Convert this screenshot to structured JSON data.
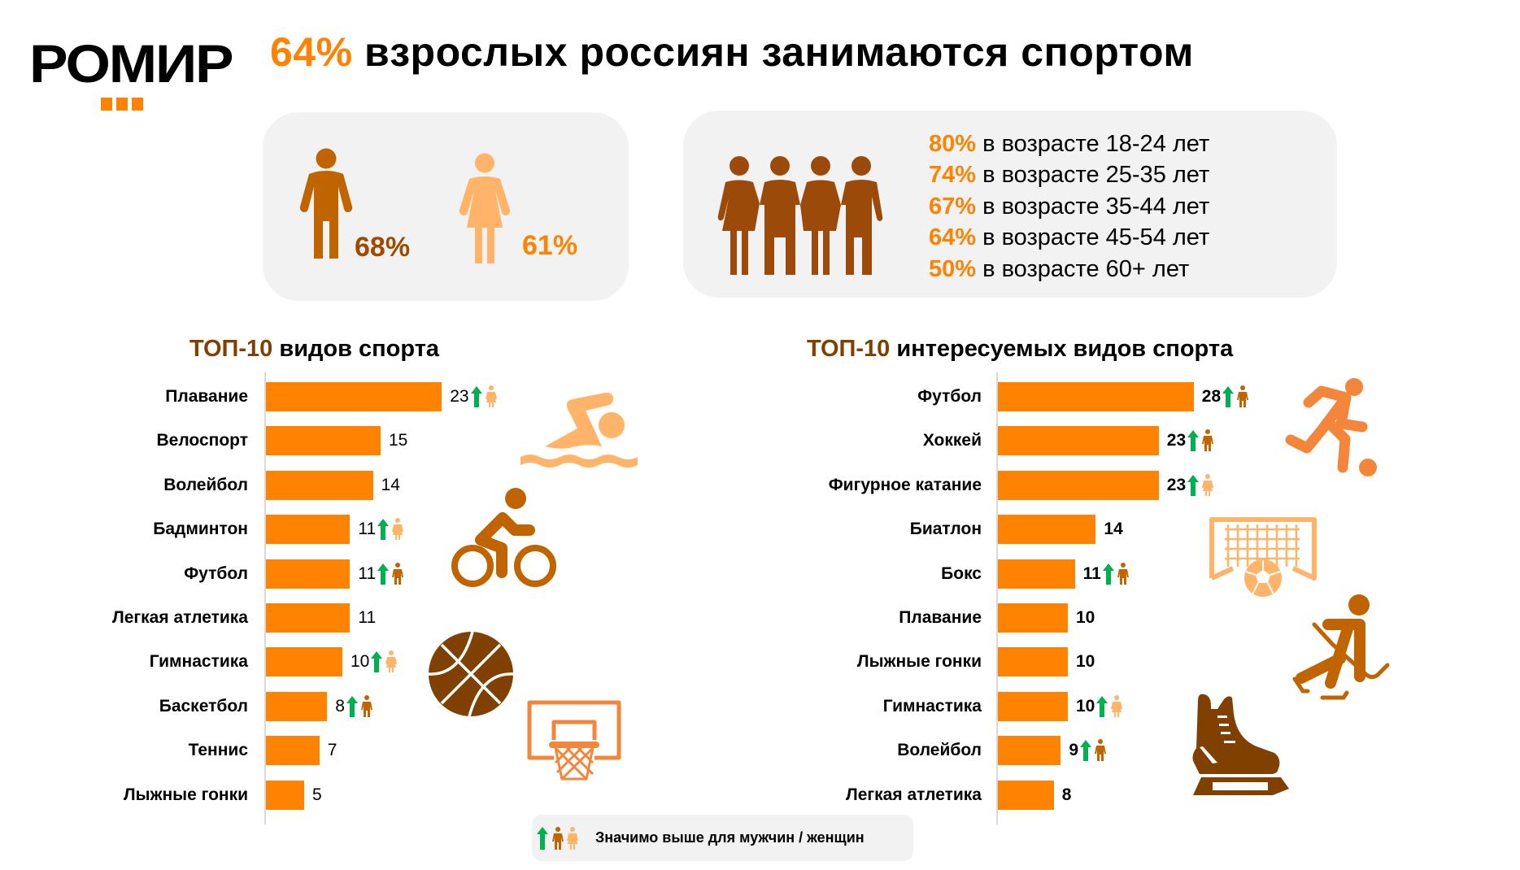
{
  "header": {
    "logo_text": "РОМИР",
    "title_highlight": "64%",
    "title_rest": " взрослых россиян занимаются спортом"
  },
  "gender_card": {
    "men_pct": "68%",
    "women_pct": "61%"
  },
  "age_card": {
    "lines": [
      {
        "pct": "80%",
        "text": " в возрасте 18-24 лет"
      },
      {
        "pct": "74%",
        "text": " в возрасте 25-35 лет"
      },
      {
        "pct": "67%",
        "text": " в возрасте 35-44 лет"
      },
      {
        "pct": "64%",
        "text": " в возрасте 45-54 лет"
      },
      {
        "pct": "50%",
        "text": " в возрасте 60+ лет"
      }
    ]
  },
  "legend": {
    "text": "Значимо выше для мужчин / женщин"
  },
  "colors": {
    "accent": "#ff8200",
    "title_dark": "#7f4000",
    "men": "#c06400",
    "women": "#ffb469",
    "arrow": "#00b050",
    "card_bg": "#f2f2f2",
    "basketball": "#7f4000",
    "skate": "#7f4000"
  },
  "chart_data": [
    {
      "type": "bar",
      "orientation": "horizontal",
      "title_highlight": "ТОП-10",
      "title_rest": " видов спорта",
      "categories": [
        "Плавание",
        "Велоспорт",
        "Волейбол",
        "Бадминтон",
        "Футбол",
        "Легкая атлетика",
        "Гимнастика",
        "Баскетбол",
        "Теннис",
        "Лыжные гонки"
      ],
      "values": [
        23,
        15,
        14,
        11,
        11,
        11,
        10,
        8,
        7,
        5
      ],
      "value_labels": [
        "23",
        "15",
        "14",
        "11",
        "11",
        "11",
        "10",
        "8",
        "7",
        "5"
      ],
      "significant_higher": [
        null,
        null,
        null,
        null,
        null,
        null,
        null,
        null,
        null,
        null
      ],
      "markers": [
        "women",
        null,
        null,
        "women",
        "men",
        null,
        "women",
        "men",
        null,
        null
      ],
      "xlabel": "",
      "ylabel": "",
      "grid": false
    },
    {
      "type": "bar",
      "orientation": "horizontal",
      "title_highlight": "ТОП-10",
      "title_rest": " интересуемых видов спорта",
      "categories": [
        "Футбол",
        "Хоккей",
        "Фигурное катание",
        "Биатлон",
        "Бокс",
        "Плавание",
        "Лыжные гонки",
        "Гимнастика",
        "Волейбол",
        "Легкая атлетика"
      ],
      "values": [
        28,
        23,
        23,
        14,
        11,
        10,
        10,
        10,
        9,
        8
      ],
      "value_labels": [
        "28",
        "23",
        "23",
        "14",
        "11",
        "10",
        "10",
        "10",
        "9",
        "8"
      ],
      "markers": [
        "men",
        "men",
        "women",
        null,
        "men",
        null,
        null,
        "women",
        "men",
        null
      ],
      "xlabel": "",
      "ylabel": "",
      "grid": false
    }
  ]
}
